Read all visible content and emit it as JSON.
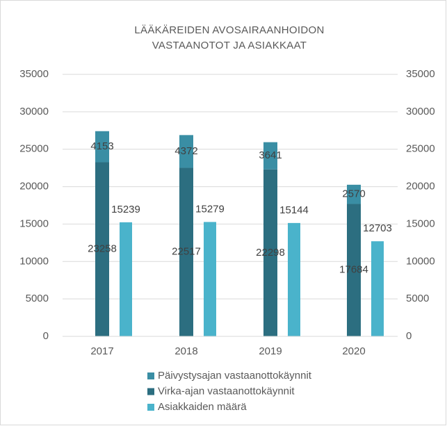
{
  "chart_data": {
    "type": "bar",
    "title": [
      "LÄÄKÄREIDEN AVOSAIRAANHOIDON",
      "VASTAANOTOT  JA ASIAKKAAT"
    ],
    "categories": [
      "2017",
      "2018",
      "2019",
      "2020"
    ],
    "series": [
      {
        "name": "Päivystysajan vastaanottokäynnit",
        "color": "#3a8ea4",
        "values": [
          4153,
          4372,
          3641,
          2570
        ],
        "stack": "visits"
      },
      {
        "name": "Virka-ajan vastaanottokäynnit",
        "color": "#2c6e80",
        "values": [
          23258,
          22517,
          22298,
          17684
        ],
        "stack": "visits"
      },
      {
        "name": "Asiakkaiden määrä",
        "color": "#4ab3cb",
        "values": [
          15239,
          15279,
          15144,
          12703
        ],
        "axis": "y2"
      }
    ],
    "ylim": [
      0,
      35000
    ],
    "yticks": [
      0,
      5000,
      10000,
      15000,
      20000,
      25000,
      30000,
      35000
    ],
    "y2lim": [
      0,
      35000
    ],
    "y2ticks": [
      0,
      5000,
      10000,
      15000,
      20000,
      25000,
      30000,
      35000
    ],
    "grid": true,
    "legend": "bottom"
  }
}
